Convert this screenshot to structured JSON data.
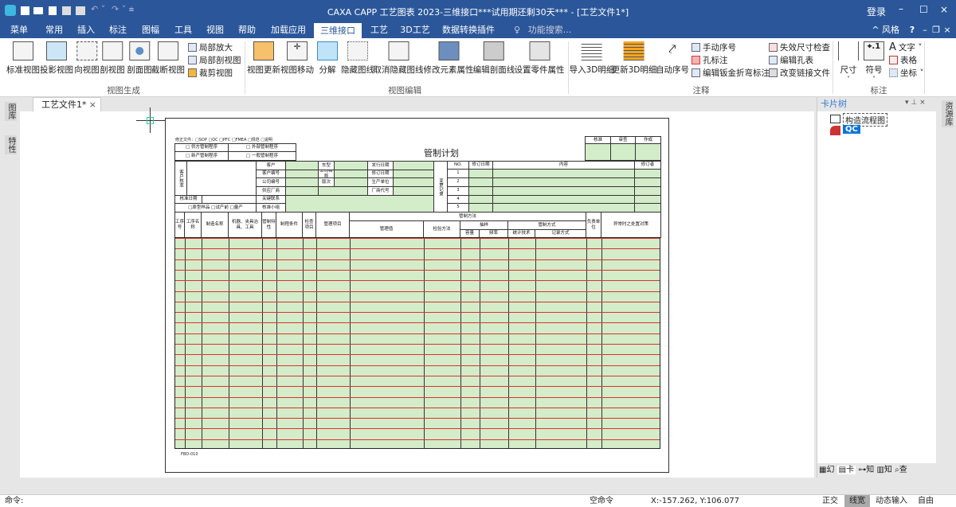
{
  "app": {
    "title": "CAXA CAPP 工艺图表 2023-三维接口***试用期还剩30天*** - [工艺文件1*]",
    "login": "登录",
    "style_label": "风格",
    "search_placeholder": "功能搜索..."
  },
  "menu": {
    "tabs": [
      "菜单",
      "常用",
      "插入",
      "标注",
      "图幅",
      "工具",
      "视图",
      "帮助",
      "加载应用",
      "三维接口",
      "工艺",
      "3D工艺",
      "数据转换插件"
    ],
    "active": "三维接口"
  },
  "ribbon": {
    "groups": [
      {
        "label": "视图生成",
        "big": [
          "标准视图",
          "投影视图",
          "向视图",
          "剖视图",
          "剖面图",
          "截断视图"
        ],
        "small": [
          "局部放大",
          "局部剖视图",
          "裁剪视图"
        ]
      },
      {
        "label": "视图编辑",
        "big": [
          "视图更新",
          "视图移动",
          "分解",
          "隐藏图线",
          "取消隐藏图线",
          "修改元素属性",
          "编辑剖面线",
          "设置零件属性"
        ]
      },
      {
        "label": "注释",
        "big": [
          "导入3D明细",
          "更新3D明细",
          "自动序号"
        ],
        "small": [
          "手动序号",
          "孔标注",
          "编辑钣金折弯标注",
          "失效尺寸检查",
          "编辑孔表",
          "改变链接文件"
        ]
      },
      {
        "label": "标注",
        "big": [
          "尺寸",
          "符号"
        ],
        "small": [
          "文字",
          "表格",
          "坐标"
        ]
      }
    ]
  },
  "document": {
    "tab": "工艺文件1*",
    "left_panels": [
      "图库",
      "特性"
    ],
    "right_strip": "资源库"
  },
  "card_tree": {
    "title": "卡片树",
    "items": [
      "构造流程图",
      "QC"
    ],
    "bottom_tabs": [
      "幻",
      "卡",
      "知",
      "知",
      "查"
    ]
  },
  "form": {
    "title": "管制计划",
    "top_line": "修正文件：□SOP □QC □PFC □FMEA □规范 □说明",
    "checks": [
      "□ 供方管制程序",
      "□ 外部管制程序",
      "□ 新产管制程序",
      "□ 一般管制程序"
    ],
    "sign": [
      "核准",
      "审查",
      "作成"
    ],
    "customer_block": "客户核准",
    "approve_date": "核准日期",
    "stage_checks": "□原型样品 □试产前 □量产",
    "labels_a": [
      "客户",
      "客户编号",
      "公司编号",
      "供应厂商",
      "关键联系",
      "核准小组"
    ],
    "labels_b": [
      "车型",
      "公司名称",
      "版次"
    ],
    "labels_c": [
      "发行日期",
      "修订日期",
      "生产单位",
      "厂商代号"
    ],
    "change_label": "变更记录",
    "change_headers": [
      "NO.",
      "修订日期",
      "内容",
      "修订者"
    ],
    "change_nos": [
      "1",
      "2",
      "3",
      "4",
      "5"
    ],
    "columns": [
      "工序号",
      "工序名称",
      "制造名称",
      "机器、夹具治具、工具",
      "管制特性",
      "制程条件",
      "检查项目",
      "管理项目",
      "管理值",
      "检验方法",
      "频率",
      "抽样",
      "统计技术",
      "记录方式",
      "负责单位",
      "异常时之处置对策"
    ],
    "group_header": "管制方法",
    "sample_header": "抽样",
    "sample_sub": [
      "容量",
      "/",
      "频率"
    ],
    "control_mode": "管制方式",
    "footer_code": "FBD-010",
    "row_count": 20,
    "colors": {
      "fill": "#d3ecc9",
      "row_line": "#e03030"
    }
  },
  "status": {
    "command_label": "命令:",
    "idle": "空命令",
    "coords": "X:-157.262, Y:106.077",
    "toggles": [
      "正交",
      "线宽",
      "动态输入",
      "自由"
    ],
    "active_toggle": "线宽"
  },
  "colors": {
    "titlebar": "#2b579a",
    "accent": "#2b579a"
  }
}
